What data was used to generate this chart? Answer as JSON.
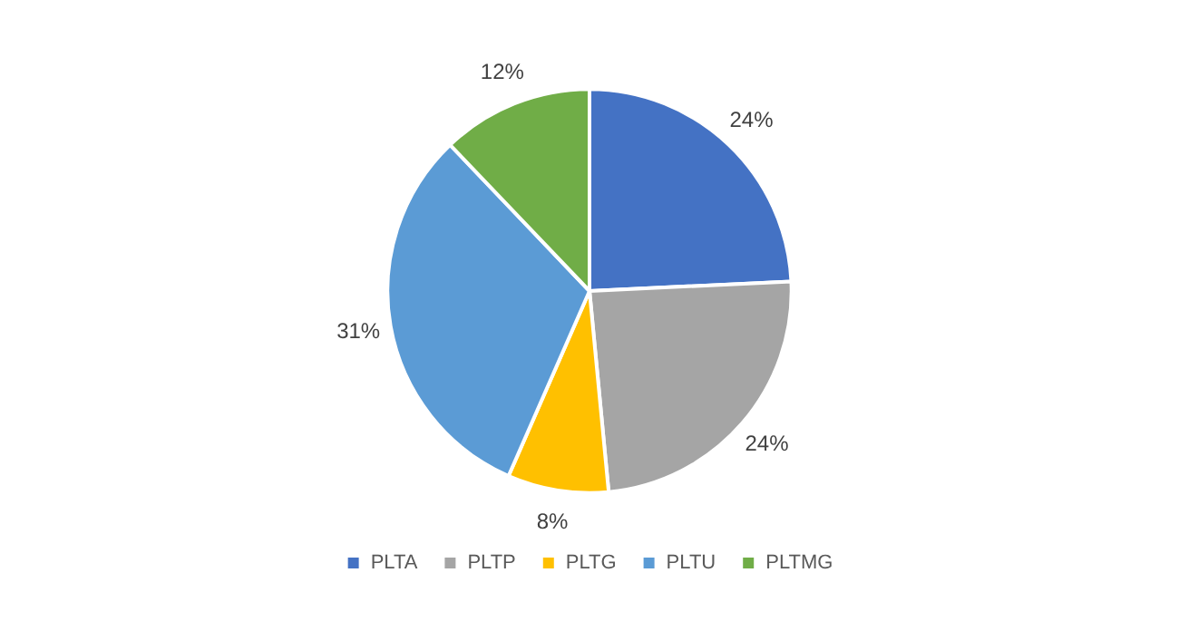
{
  "chart_data": {
    "type": "pie",
    "categories": [
      "PLTA",
      "PLTP",
      "PLTG",
      "PLTU",
      "PLTMG"
    ],
    "values": [
      24,
      24,
      8,
      31,
      12
    ],
    "colors": [
      "#4472c4",
      "#a5a5a5",
      "#ffc000",
      "#5b9bd5",
      "#70ad47"
    ],
    "value_labels": [
      "24%",
      "24%",
      "8%",
      "31%",
      "12%"
    ],
    "legend": "bottom"
  }
}
